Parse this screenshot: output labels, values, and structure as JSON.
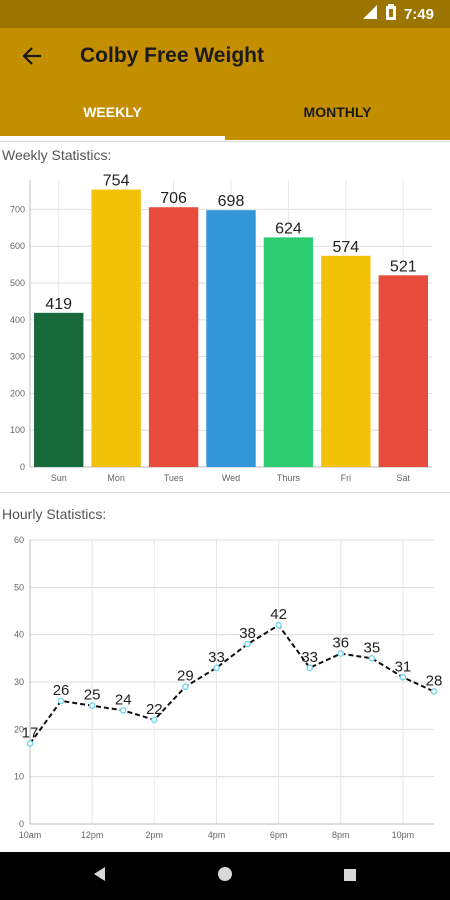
{
  "status_bar": {
    "time": "7:49"
  },
  "app_bar": {
    "title": "Colby Free Weight"
  },
  "tabs": [
    {
      "label": "WEEKLY",
      "selected": true
    },
    {
      "label": "MONTHLY",
      "selected": false
    }
  ],
  "weekly": {
    "label": "Weekly Statistics:"
  },
  "hourly": {
    "label": "Hourly Statistics:"
  },
  "colors": {
    "app_bar": "#c38f00",
    "status_bar": "#9c7400",
    "bar_sun": "#17683a",
    "bar_yellow": "#f2c20a",
    "bar_red": "#e74c3c",
    "bar_blue": "#3396d8",
    "bar_green": "#2ecc71",
    "line": "#111111",
    "point": "#6fd6f2"
  },
  "chart_data": [
    {
      "type": "bar",
      "categories": [
        "Sun",
        "Mon",
        "Tues",
        "Wed",
        "Thurs",
        "Fri",
        "Sat"
      ],
      "values": [
        419,
        754,
        706,
        698,
        624,
        574,
        521
      ],
      "bar_colors": [
        "#17683a",
        "#f2c20a",
        "#e74c3c",
        "#3396d8",
        "#2ecc71",
        "#f2c20a",
        "#e74c3c"
      ],
      "yticks": [
        0,
        100,
        200,
        300,
        400,
        500,
        600,
        700
      ],
      "ylim": [
        0,
        780
      ],
      "grid": true,
      "data_labels": true
    },
    {
      "type": "line",
      "x": [
        "10am",
        "11am",
        "12pm",
        "1pm",
        "2pm",
        "3pm",
        "4pm",
        "5pm",
        "6pm",
        "7pm",
        "8pm",
        "9pm",
        "10pm",
        "11pm"
      ],
      "xtick_labels": [
        "10am",
        "12pm",
        "2pm",
        "4pm",
        "6pm",
        "8pm",
        "10pm"
      ],
      "values": [
        17,
        26,
        25,
        24,
        22,
        29,
        33,
        38,
        42,
        33,
        36,
        35,
        31,
        28
      ],
      "yticks": [
        0,
        10,
        20,
        30,
        40,
        50,
        60
      ],
      "ylim": [
        0,
        60
      ],
      "line_style": "dashed",
      "grid": true,
      "data_labels": true
    }
  ]
}
